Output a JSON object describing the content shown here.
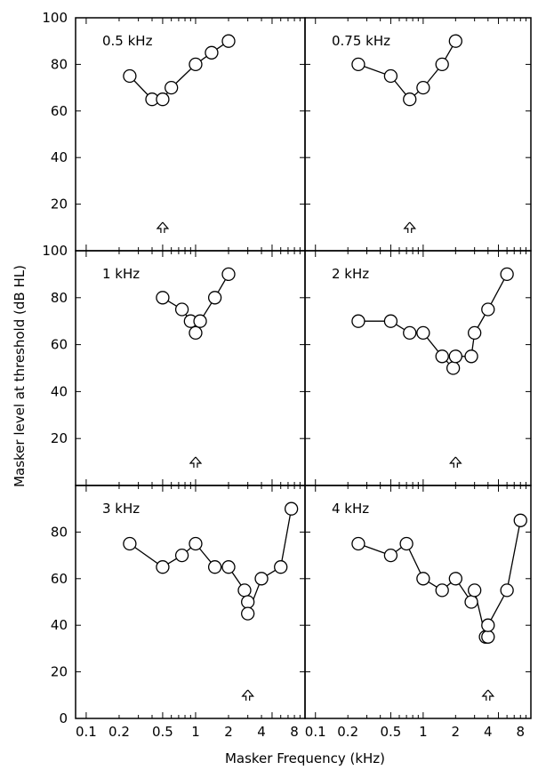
{
  "figure": {
    "ylabel": "Masker level at threshold (dB HL)",
    "xlabel": "Masker Frequency (kHz)",
    "x_tick_labels": [
      "0.1",
      "0.2",
      "0.5",
      "1",
      "2",
      "4",
      "8"
    ],
    "y_tick_labels_top": [
      "20",
      "40",
      "60",
      "80",
      "100"
    ],
    "y_tick_labels_middle": [
      "20",
      "40",
      "60",
      "80",
      "100"
    ],
    "y_tick_labels_bottom": [
      "0",
      "20",
      "40",
      "60",
      "80"
    ]
  },
  "chart_data": [
    {
      "type": "line",
      "panel_label": "0.5 kHz",
      "probe_frequency_khz": 0.5,
      "x_scale": "log",
      "x": [
        0.25,
        0.4,
        0.5,
        0.6,
        1.0,
        1.4,
        2.0
      ],
      "y": [
        75,
        65,
        65,
        70,
        80,
        85,
        90
      ],
      "xlim": [
        0.08,
        10
      ],
      "ylim": [
        0,
        100
      ]
    },
    {
      "type": "line",
      "panel_label": "0.75 kHz",
      "probe_frequency_khz": 0.75,
      "x_scale": "log",
      "x": [
        0.25,
        0.5,
        0.75,
        1.0,
        1.5,
        2.0
      ],
      "y": [
        80,
        75,
        65,
        70,
        80,
        90
      ],
      "xlim": [
        0.08,
        10
      ],
      "ylim": [
        0,
        100
      ]
    },
    {
      "type": "line",
      "panel_label": "1 kHz",
      "probe_frequency_khz": 1.0,
      "x_scale": "log",
      "x": [
        0.5,
        0.75,
        0.9,
        1.0,
        1.1,
        1.5,
        2.0
      ],
      "y": [
        80,
        75,
        70,
        65,
        70,
        80,
        90
      ],
      "xlim": [
        0.08,
        10
      ],
      "ylim": [
        0,
        100
      ]
    },
    {
      "type": "line",
      "panel_label": "2 kHz",
      "probe_frequency_khz": 2.0,
      "x_scale": "log",
      "x": [
        0.25,
        0.5,
        0.75,
        1.0,
        1.5,
        1.9,
        2.0,
        2.8,
        3.0,
        4.0,
        6.0
      ],
      "y": [
        70,
        70,
        65,
        65,
        55,
        50,
        55,
        55,
        65,
        75,
        90
      ],
      "xlim": [
        0.08,
        10
      ],
      "ylim": [
        0,
        100
      ]
    },
    {
      "type": "line",
      "panel_label": "3 kHz",
      "probe_frequency_khz": 3.0,
      "x_scale": "log",
      "x": [
        0.25,
        0.5,
        0.75,
        1.0,
        1.5,
        2.0,
        2.8,
        3.0,
        3.0,
        4.0,
        6.0,
        7.5
      ],
      "y": [
        75,
        65,
        70,
        75,
        65,
        65,
        55,
        50,
        45,
        60,
        65,
        90
      ],
      "xlim": [
        0.08,
        10
      ],
      "ylim": [
        0,
        100
      ]
    },
    {
      "type": "line",
      "panel_label": "4 kHz",
      "probe_frequency_khz": 4.0,
      "x_scale": "log",
      "x": [
        0.25,
        0.5,
        0.7,
        1.0,
        1.5,
        2.0,
        2.8,
        3.0,
        3.8,
        4.0,
        4.0,
        6.0,
        8.0
      ],
      "y": [
        75,
        70,
        75,
        60,
        55,
        60,
        50,
        55,
        35,
        35,
        40,
        55,
        85
      ],
      "xlim": [
        0.08,
        10
      ],
      "ylim": [
        0,
        100
      ]
    }
  ]
}
